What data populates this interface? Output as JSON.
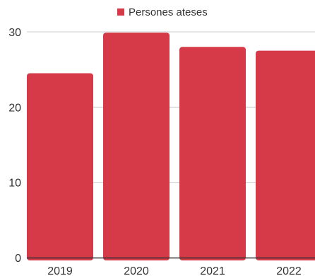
{
  "chart_data": {
    "type": "bar",
    "categories": [
      "2019",
      "2020",
      "2021",
      "2022"
    ],
    "series": [
      {
        "name": "Persones ateses",
        "values": [
          24.5,
          29.9,
          28.0,
          27.5
        ]
      }
    ],
    "title": "",
    "xlabel": "",
    "ylabel": "",
    "ylim": [
      0,
      30
    ],
    "yticks": [
      0,
      10,
      20,
      30
    ],
    "grid": true,
    "legend": "top-center",
    "colors": {
      "bar": "#d63a48",
      "grid": "#cccccc",
      "axis": "#333333",
      "text": "#333333"
    }
  }
}
